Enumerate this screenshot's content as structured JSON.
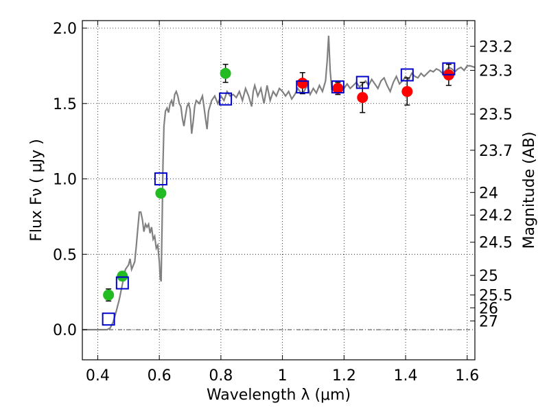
{
  "chart_data": {
    "type": "scatter",
    "title": "",
    "xlabel": "Wavelength  λ (μm)",
    "ylabel": "Flux  Fν  ( μJy )",
    "ylabel_right": "Magnitude (AB)",
    "xlim": [
      0.35,
      1.625
    ],
    "ylim": [
      -0.2,
      2.05
    ],
    "grid": true,
    "x_ticks": [
      0.4,
      0.6,
      0.8,
      1.0,
      1.2,
      1.4,
      1.6
    ],
    "x_tick_labels": [
      "0.4",
      "0.6",
      "0.8",
      "1",
      "1.2",
      "1.4",
      "1.6"
    ],
    "y_ticks": [
      0.0,
      0.5,
      1.0,
      1.5,
      2.0
    ],
    "y_tick_labels": [
      "0.0",
      "0.5",
      "1.0",
      "1.5",
      "2.0"
    ],
    "mag_ticks": [
      {
        "label": "23.2",
        "flux": 1.88
      },
      {
        "label": "23.3",
        "flux": 1.72
      },
      {
        "label": "23.5",
        "flux": 1.43
      },
      {
        "label": "23.7",
        "flux": 1.19
      },
      {
        "label": "24",
        "flux": 0.91
      },
      {
        "label": "24.2",
        "flux": 0.76
      },
      {
        "label": "24.5",
        "flux": 0.58
      },
      {
        "label": "25",
        "flux": 0.36
      },
      {
        "label": "25.5",
        "flux": 0.23
      },
      {
        "label": "26",
        "flux": 0.145
      },
      {
        "label": "27",
        "flux": 0.058
      }
    ],
    "series": [
      {
        "name": "model spectrum",
        "kind": "line",
        "color": "#808080",
        "points": [
          [
            0.35,
            0.0
          ],
          [
            0.42,
            0.0
          ],
          [
            0.43,
            0.0
          ],
          [
            0.44,
            0.01
          ],
          [
            0.45,
            0.05
          ],
          [
            0.46,
            0.12
          ],
          [
            0.47,
            0.2
          ],
          [
            0.48,
            0.3
          ],
          [
            0.49,
            0.4
          ],
          [
            0.5,
            0.43
          ],
          [
            0.505,
            0.47
          ],
          [
            0.51,
            0.4
          ],
          [
            0.52,
            0.45
          ],
          [
            0.525,
            0.55
          ],
          [
            0.53,
            0.67
          ],
          [
            0.535,
            0.78
          ],
          [
            0.54,
            0.78
          ],
          [
            0.545,
            0.73
          ],
          [
            0.55,
            0.65
          ],
          [
            0.555,
            0.7
          ],
          [
            0.56,
            0.68
          ],
          [
            0.565,
            0.7
          ],
          [
            0.57,
            0.64
          ],
          [
            0.575,
            0.68
          ],
          [
            0.58,
            0.6
          ],
          [
            0.585,
            0.62
          ],
          [
            0.59,
            0.54
          ],
          [
            0.595,
            0.56
          ],
          [
            0.6,
            0.45
          ],
          [
            0.603,
            0.34
          ],
          [
            0.606,
            0.32
          ],
          [
            0.609,
            0.7
          ],
          [
            0.612,
            1.1
          ],
          [
            0.615,
            1.35
          ],
          [
            0.62,
            1.45
          ],
          [
            0.625,
            1.47
          ],
          [
            0.63,
            1.44
          ],
          [
            0.635,
            1.5
          ],
          [
            0.64,
            1.52
          ],
          [
            0.645,
            1.48
          ],
          [
            0.65,
            1.56
          ],
          [
            0.655,
            1.58
          ],
          [
            0.66,
            1.55
          ],
          [
            0.665,
            1.5
          ],
          [
            0.67,
            1.48
          ],
          [
            0.675,
            1.4
          ],
          [
            0.68,
            1.35
          ],
          [
            0.685,
            1.42
          ],
          [
            0.69,
            1.48
          ],
          [
            0.695,
            1.5
          ],
          [
            0.7,
            1.46
          ],
          [
            0.705,
            1.3
          ],
          [
            0.71,
            1.38
          ],
          [
            0.715,
            1.48
          ],
          [
            0.72,
            1.52
          ],
          [
            0.73,
            1.5
          ],
          [
            0.74,
            1.55
          ],
          [
            0.745,
            1.48
          ],
          [
            0.75,
            1.4
          ],
          [
            0.755,
            1.33
          ],
          [
            0.76,
            1.45
          ],
          [
            0.77,
            1.52
          ],
          [
            0.78,
            1.55
          ],
          [
            0.79,
            1.5
          ],
          [
            0.8,
            1.55
          ],
          [
            0.81,
            1.52
          ],
          [
            0.82,
            1.58
          ],
          [
            0.83,
            1.55
          ],
          [
            0.84,
            1.56
          ],
          [
            0.85,
            1.54
          ],
          [
            0.86,
            1.58
          ],
          [
            0.87,
            1.52
          ],
          [
            0.88,
            1.6
          ],
          [
            0.89,
            1.55
          ],
          [
            0.9,
            1.48
          ],
          [
            0.905,
            1.58
          ],
          [
            0.91,
            1.62
          ],
          [
            0.92,
            1.55
          ],
          [
            0.93,
            1.6
          ],
          [
            0.94,
            1.5
          ],
          [
            0.95,
            1.62
          ],
          [
            0.96,
            1.52
          ],
          [
            0.97,
            1.58
          ],
          [
            0.98,
            1.55
          ],
          [
            0.99,
            1.6
          ],
          [
            1.0,
            1.58
          ],
          [
            1.01,
            1.55
          ],
          [
            1.02,
            1.58
          ],
          [
            1.03,
            1.53
          ],
          [
            1.04,
            1.56
          ],
          [
            1.05,
            1.6
          ],
          [
            1.06,
            1.57
          ],
          [
            1.07,
            1.58
          ],
          [
            1.08,
            1.62
          ],
          [
            1.09,
            1.56
          ],
          [
            1.1,
            1.6
          ],
          [
            1.11,
            1.57
          ],
          [
            1.12,
            1.62
          ],
          [
            1.13,
            1.58
          ],
          [
            1.14,
            1.65
          ],
          [
            1.145,
            1.78
          ],
          [
            1.15,
            1.95
          ],
          [
            1.155,
            1.72
          ],
          [
            1.16,
            1.6
          ],
          [
            1.17,
            1.62
          ],
          [
            1.18,
            1.58
          ],
          [
            1.19,
            1.62
          ],
          [
            1.2,
            1.6
          ],
          [
            1.21,
            1.63
          ],
          [
            1.22,
            1.6
          ],
          [
            1.23,
            1.62
          ],
          [
            1.24,
            1.64
          ],
          [
            1.25,
            1.61
          ],
          [
            1.26,
            1.63
          ],
          [
            1.27,
            1.65
          ],
          [
            1.28,
            1.62
          ],
          [
            1.29,
            1.66
          ],
          [
            1.3,
            1.63
          ],
          [
            1.31,
            1.6
          ],
          [
            1.32,
            1.65
          ],
          [
            1.33,
            1.67
          ],
          [
            1.34,
            1.62
          ],
          [
            1.35,
            1.58
          ],
          [
            1.36,
            1.64
          ],
          [
            1.37,
            1.68
          ],
          [
            1.38,
            1.63
          ],
          [
            1.39,
            1.65
          ],
          [
            1.4,
            1.68
          ],
          [
            1.41,
            1.66
          ],
          [
            1.42,
            1.7
          ],
          [
            1.43,
            1.68
          ],
          [
            1.44,
            1.67
          ],
          [
            1.45,
            1.7
          ],
          [
            1.46,
            1.68
          ],
          [
            1.47,
            1.7
          ],
          [
            1.48,
            1.72
          ],
          [
            1.49,
            1.71
          ],
          [
            1.5,
            1.73
          ],
          [
            1.51,
            1.72
          ],
          [
            1.52,
            1.7
          ],
          [
            1.53,
            1.72
          ],
          [
            1.54,
            1.74
          ],
          [
            1.55,
            1.73
          ],
          [
            1.56,
            1.71
          ],
          [
            1.57,
            1.73
          ],
          [
            1.58,
            1.74
          ],
          [
            1.59,
            1.72
          ],
          [
            1.6,
            1.75
          ],
          [
            1.61,
            1.75
          ],
          [
            1.625,
            1.74
          ]
        ]
      },
      {
        "name": "model photometry",
        "kind": "open-square",
        "color": "#0000cc",
        "points": [
          [
            0.435,
            0.07
          ],
          [
            0.48,
            0.31
          ],
          [
            0.605,
            1.0
          ],
          [
            0.815,
            1.53
          ],
          [
            1.065,
            1.61
          ],
          [
            1.18,
            1.61
          ],
          [
            1.26,
            1.64
          ],
          [
            1.405,
            1.69
          ],
          [
            1.54,
            1.73
          ]
        ]
      },
      {
        "name": "observed (green)",
        "kind": "filled-circle",
        "color": "#22bb22",
        "points": [
          {
            "x": 0.435,
            "y": 0.23,
            "err": 0.04
          },
          {
            "x": 0.48,
            "y": 0.355,
            "err": 0.03
          },
          {
            "x": 0.605,
            "y": 0.905,
            "err": 0.0
          },
          {
            "x": 0.815,
            "y": 1.7,
            "err": 0.06
          }
        ]
      },
      {
        "name": "observed (red)",
        "kind": "filled-circle",
        "color": "#ff0000",
        "points": [
          {
            "x": 1.065,
            "y": 1.635,
            "err": 0.07
          },
          {
            "x": 1.18,
            "y": 1.6,
            "err": 0.04
          },
          {
            "x": 1.26,
            "y": 1.54,
            "err": 0.1
          },
          {
            "x": 1.405,
            "y": 1.58,
            "err": 0.09
          },
          {
            "x": 1.54,
            "y": 1.69,
            "err": 0.07
          }
        ]
      }
    ]
  }
}
